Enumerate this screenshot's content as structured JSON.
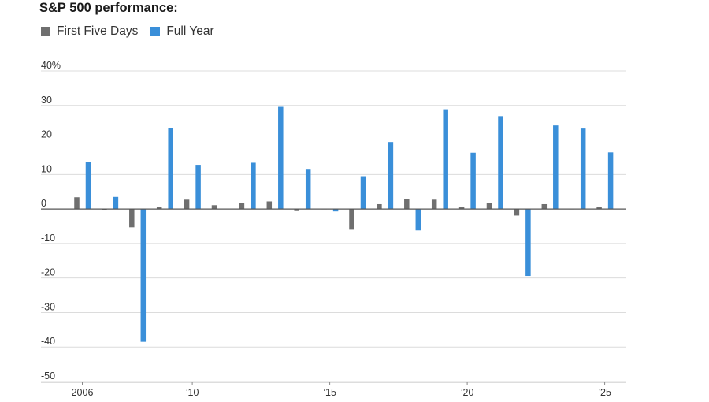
{
  "title": "S&P 500 performance:",
  "colors": {
    "first_five_days": "#6f6f6f",
    "full_year": "#3a8fd9",
    "grid": "#dcdcdc",
    "zero_line": "#555555"
  },
  "legend": [
    {
      "label": "First Five Days",
      "color": "#6f6f6f"
    },
    {
      "label": "Full Year",
      "color": "#3a8fd9"
    }
  ],
  "chart_data": {
    "type": "bar",
    "title": "S&P 500 performance:",
    "xlabel": "",
    "ylabel": "",
    "ylim": [
      -50,
      40
    ],
    "yticks": [
      {
        "value": 40,
        "label": "40%"
      },
      {
        "value": 30,
        "label": "30"
      },
      {
        "value": 20,
        "label": "20"
      },
      {
        "value": 10,
        "label": "10"
      },
      {
        "value": 0,
        "label": "0"
      },
      {
        "value": -10,
        "label": "-10"
      },
      {
        "value": -20,
        "label": "-20"
      },
      {
        "value": -30,
        "label": "-30"
      },
      {
        "value": -40,
        "label": "-40"
      },
      {
        "value": -50,
        "label": "-50"
      }
    ],
    "categories": [
      2006,
      2007,
      2008,
      2009,
      2010,
      2011,
      2012,
      2013,
      2014,
      2015,
      2016,
      2017,
      2018,
      2019,
      2020,
      2021,
      2022,
      2023,
      2024,
      2025
    ],
    "xticks": [
      {
        "year": 2006,
        "label": "2006"
      },
      {
        "year": 2010,
        "label": "’10"
      },
      {
        "year": 2015,
        "label": "’15"
      },
      {
        "year": 2020,
        "label": "’20"
      },
      {
        "year": 2025,
        "label": "’25"
      }
    ],
    "series": [
      {
        "name": "First Five Days",
        "values": [
          3.4,
          -0.4,
          -5.3,
          0.7,
          2.7,
          1.1,
          1.8,
          2.2,
          -0.6,
          -0.1,
          -6.0,
          1.4,
          2.8,
          2.7,
          0.7,
          1.8,
          -1.9,
          1.4,
          -0.1,
          0.6
        ]
      },
      {
        "name": "Full Year",
        "values": [
          13.6,
          3.5,
          -38.5,
          23.5,
          12.8,
          0.0,
          13.4,
          29.6,
          11.4,
          -0.7,
          9.5,
          19.4,
          -6.2,
          28.9,
          16.3,
          26.9,
          -19.4,
          24.2,
          23.3,
          16.4
        ]
      }
    ]
  }
}
